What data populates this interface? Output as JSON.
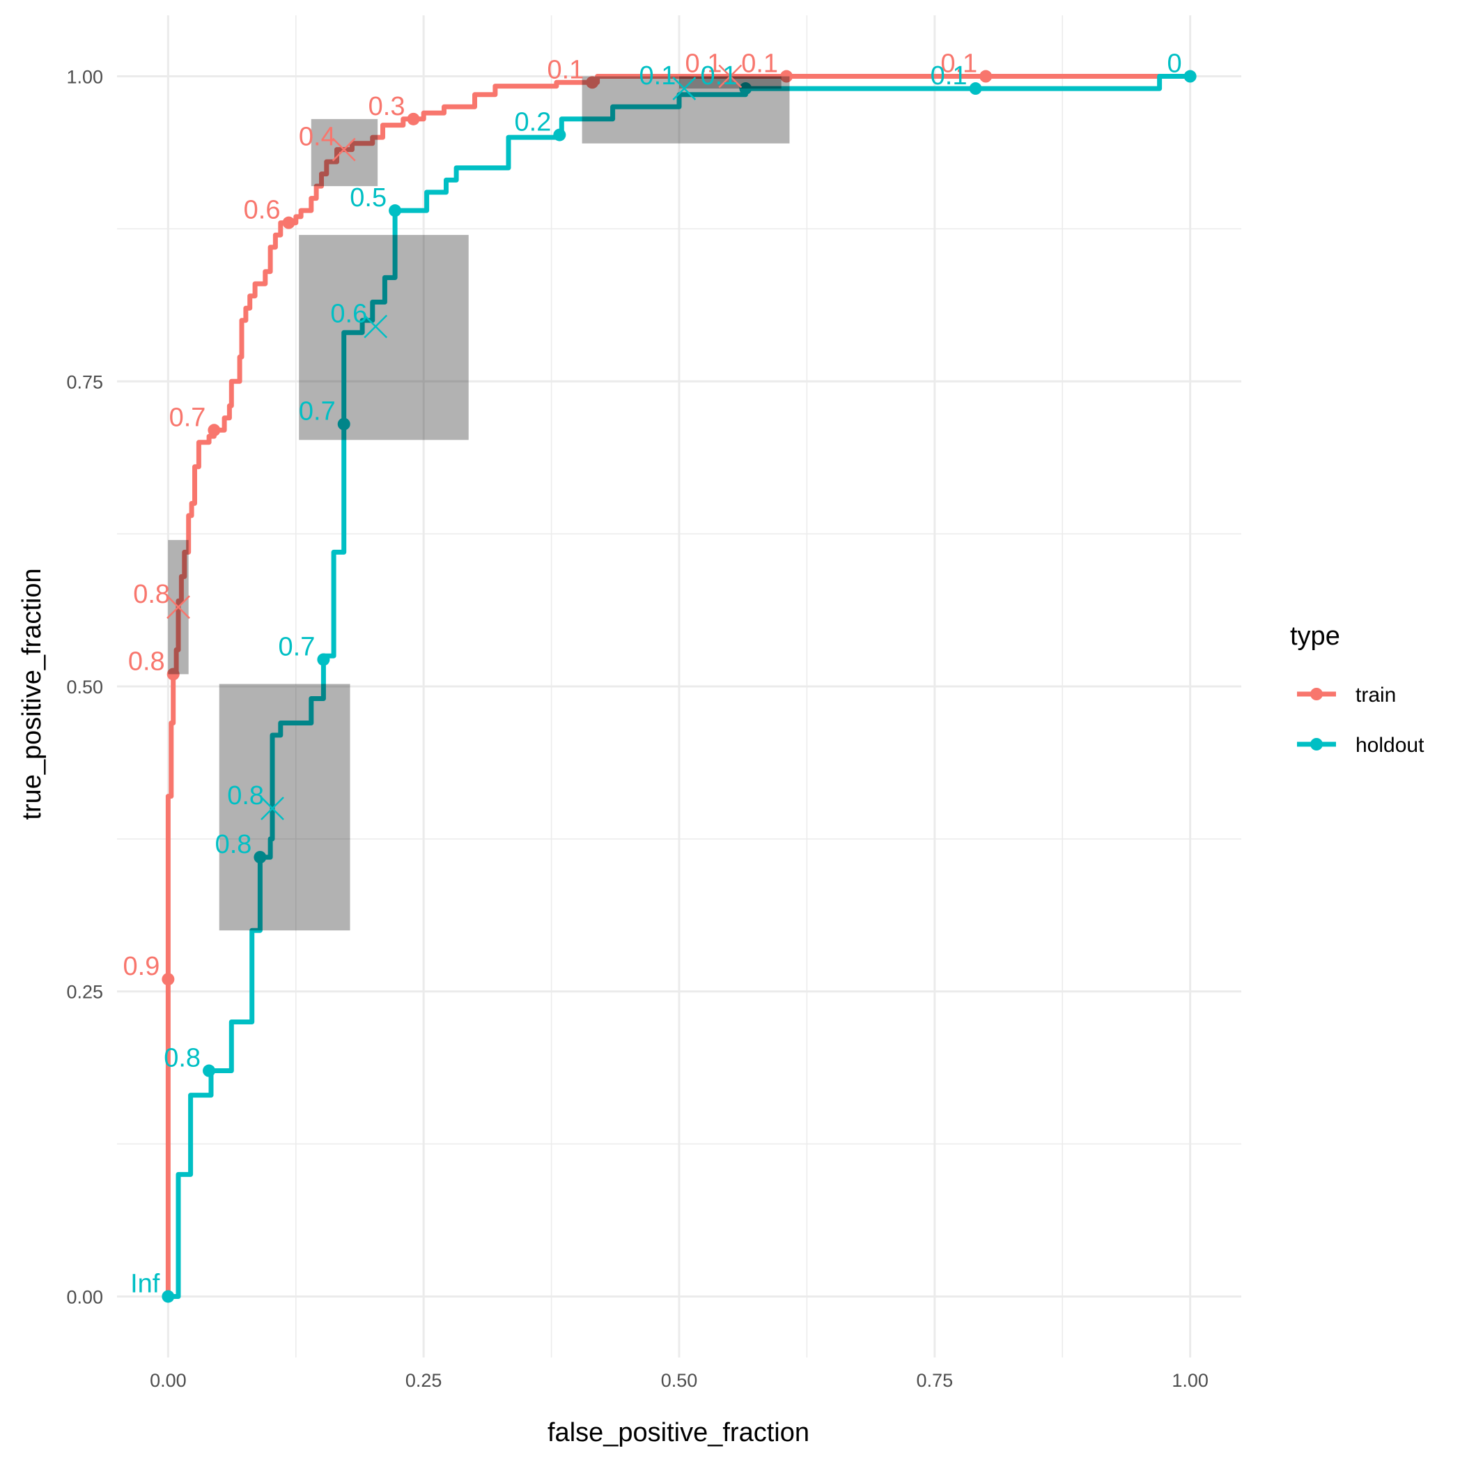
{
  "chart_data": {
    "type": "line",
    "title": "",
    "xlabel": "false_positive_fraction",
    "ylabel": "true_positive_fraction",
    "xlim": [
      -0.05,
      1.05
    ],
    "ylim": [
      -0.05,
      1.05
    ],
    "x_ticks": [
      0,
      0.25,
      0.5,
      0.75,
      1
    ],
    "x_tick_labels": [
      "0.00",
      "0.25",
      "0.50",
      "0.75",
      "1.00"
    ],
    "y_ticks": [
      0,
      0.25,
      0.5,
      0.75,
      1
    ],
    "y_tick_labels": [
      "0.00",
      "0.25",
      "0.50",
      "0.75",
      "1.00"
    ],
    "grid": true,
    "legend": {
      "title": "type",
      "position": "right",
      "entries": [
        {
          "label": "train",
          "color": "#F8766D"
        },
        {
          "label": "holdout",
          "color": "#00BFC4"
        }
      ]
    },
    "series": [
      {
        "name": "train",
        "color": "#F8766D",
        "step": [
          [
            0,
            0
          ],
          [
            0,
            0.26
          ],
          [
            0,
            0.41
          ],
          [
            0.003,
            0.41
          ],
          [
            0.003,
            0.47
          ],
          [
            0.005,
            0.47
          ],
          [
            0.005,
            0.51
          ],
          [
            0.008,
            0.51
          ],
          [
            0.008,
            0.53
          ],
          [
            0.01,
            0.53
          ],
          [
            0.01,
            0.57
          ],
          [
            0.013,
            0.57
          ],
          [
            0.013,
            0.59
          ],
          [
            0.016,
            0.59
          ],
          [
            0.016,
            0.61
          ],
          [
            0.02,
            0.61
          ],
          [
            0.02,
            0.64
          ],
          [
            0.023,
            0.64
          ],
          [
            0.023,
            0.65
          ],
          [
            0.026,
            0.65
          ],
          [
            0.026,
            0.68
          ],
          [
            0.03,
            0.68
          ],
          [
            0.03,
            0.7
          ],
          [
            0.04,
            0.7
          ],
          [
            0.04,
            0.705
          ],
          [
            0.045,
            0.705
          ],
          [
            0.045,
            0.71
          ],
          [
            0.055,
            0.71
          ],
          [
            0.055,
            0.72
          ],
          [
            0.06,
            0.72
          ],
          [
            0.06,
            0.73
          ],
          [
            0.062,
            0.73
          ],
          [
            0.062,
            0.75
          ],
          [
            0.07,
            0.75
          ],
          [
            0.07,
            0.77
          ],
          [
            0.072,
            0.77
          ],
          [
            0.072,
            0.8
          ],
          [
            0.076,
            0.8
          ],
          [
            0.076,
            0.81
          ],
          [
            0.08,
            0.81
          ],
          [
            0.08,
            0.82
          ],
          [
            0.085,
            0.82
          ],
          [
            0.085,
            0.83
          ],
          [
            0.095,
            0.83
          ],
          [
            0.095,
            0.84
          ],
          [
            0.1,
            0.84
          ],
          [
            0.1,
            0.86
          ],
          [
            0.105,
            0.86
          ],
          [
            0.105,
            0.87
          ],
          [
            0.11,
            0.87
          ],
          [
            0.11,
            0.88
          ],
          [
            0.125,
            0.88
          ],
          [
            0.125,
            0.885
          ],
          [
            0.13,
            0.885
          ],
          [
            0.13,
            0.89
          ],
          [
            0.14,
            0.89
          ],
          [
            0.14,
            0.9
          ],
          [
            0.145,
            0.9
          ],
          [
            0.145,
            0.91
          ],
          [
            0.15,
            0.91
          ],
          [
            0.15,
            0.92
          ],
          [
            0.155,
            0.92
          ],
          [
            0.155,
            0.93
          ],
          [
            0.165,
            0.93
          ],
          [
            0.165,
            0.94
          ],
          [
            0.18,
            0.94
          ],
          [
            0.18,
            0.945
          ],
          [
            0.2,
            0.945
          ],
          [
            0.2,
            0.95
          ],
          [
            0.21,
            0.95
          ],
          [
            0.21,
            0.96
          ],
          [
            0.23,
            0.96
          ],
          [
            0.23,
            0.965
          ],
          [
            0.25,
            0.965
          ],
          [
            0.25,
            0.97
          ],
          [
            0.27,
            0.97
          ],
          [
            0.27,
            0.975
          ],
          [
            0.3,
            0.975
          ],
          [
            0.3,
            0.985
          ],
          [
            0.32,
            0.985
          ],
          [
            0.32,
            0.992
          ],
          [
            0.38,
            0.992
          ],
          [
            0.38,
            0.995
          ],
          [
            0.42,
            0.995
          ],
          [
            0.42,
            1.0
          ],
          [
            1.0,
            1.0
          ]
        ],
        "points": [
          {
            "x": 0,
            "y": 0.26,
            "label": "0.9"
          },
          {
            "x": 0.005,
            "y": 0.51,
            "label": "0.8"
          },
          {
            "x": 0.045,
            "y": 0.71,
            "label": "0.7"
          },
          {
            "x": 0.118,
            "y": 0.88,
            "label": "0.6"
          },
          {
            "x": 0.24,
            "y": 0.965,
            "label": "0.3"
          },
          {
            "x": 0.415,
            "y": 0.995,
            "label": "0.1"
          },
          {
            "x": 0.605,
            "y": 1.0,
            "label": "0.1"
          },
          {
            "x": 0.8,
            "y": 1.0,
            "label": "0.1"
          }
        ],
        "crosshair_points": [
          {
            "x": 0.01,
            "y": 0.565,
            "label": "0.8",
            "x_range": [
              0,
              0.02
            ],
            "y_range": [
              0.51,
              0.62
            ]
          },
          {
            "x": 0.172,
            "y": 0.94,
            "label": "0.4",
            "x_range": [
              0.14,
              0.205
            ],
            "y_range": [
              0.91,
              0.965
            ]
          },
          {
            "x": 0.55,
            "y": 1.0,
            "label": "0.1",
            "x_range": [
              0.5,
              0.6
            ],
            "y_range": [
              0.99,
              1.0
            ]
          }
        ]
      },
      {
        "name": "holdout",
        "color": "#00BFC4",
        "step": [
          [
            0,
            0
          ],
          [
            0.01,
            0
          ],
          [
            0.01,
            0.1
          ],
          [
            0.022,
            0.1
          ],
          [
            0.022,
            0.165
          ],
          [
            0.042,
            0.165
          ],
          [
            0.042,
            0.185
          ],
          [
            0.062,
            0.185
          ],
          [
            0.062,
            0.225
          ],
          [
            0.082,
            0.225
          ],
          [
            0.082,
            0.3
          ],
          [
            0.09,
            0.3
          ],
          [
            0.09,
            0.36
          ],
          [
            0.1,
            0.36
          ],
          [
            0.1,
            0.375
          ],
          [
            0.102,
            0.375
          ],
          [
            0.102,
            0.46
          ],
          [
            0.11,
            0.46
          ],
          [
            0.11,
            0.47
          ],
          [
            0.14,
            0.47
          ],
          [
            0.14,
            0.49
          ],
          [
            0.152,
            0.49
          ],
          [
            0.152,
            0.525
          ],
          [
            0.162,
            0.525
          ],
          [
            0.162,
            0.61
          ],
          [
            0.172,
            0.61
          ],
          [
            0.172,
            0.715
          ],
          [
            0.172,
            0.79
          ],
          [
            0.19,
            0.79
          ],
          [
            0.19,
            0.8
          ],
          [
            0.2,
            0.8
          ],
          [
            0.2,
            0.815
          ],
          [
            0.212,
            0.815
          ],
          [
            0.212,
            0.835
          ],
          [
            0.222,
            0.835
          ],
          [
            0.222,
            0.89
          ],
          [
            0.253,
            0.89
          ],
          [
            0.253,
            0.905
          ],
          [
            0.272,
            0.905
          ],
          [
            0.272,
            0.915
          ],
          [
            0.282,
            0.915
          ],
          [
            0.282,
            0.925
          ],
          [
            0.333,
            0.925
          ],
          [
            0.333,
            0.95
          ],
          [
            0.383,
            0.95
          ],
          [
            0.383,
            0.955
          ],
          [
            0.385,
            0.955
          ],
          [
            0.385,
            0.965
          ],
          [
            0.435,
            0.965
          ],
          [
            0.435,
            0.975
          ],
          [
            0.5,
            0.975
          ],
          [
            0.5,
            0.985
          ],
          [
            0.565,
            0.985
          ],
          [
            0.565,
            0.99
          ],
          [
            0.97,
            0.99
          ],
          [
            0.97,
            1.0
          ],
          [
            1.0,
            1.0
          ]
        ],
        "points": [
          {
            "x": 0,
            "y": 0,
            "label": "Inf"
          },
          {
            "x": 0.04,
            "y": 0.185,
            "label": "0.8"
          },
          {
            "x": 0.09,
            "y": 0.36,
            "label": "0.8"
          },
          {
            "x": 0.152,
            "y": 0.522,
            "label": "0.7"
          },
          {
            "x": 0.172,
            "y": 0.715,
            "label": "0.7"
          },
          {
            "x": 0.222,
            "y": 0.89,
            "label": "0.5"
          },
          {
            "x": 0.383,
            "y": 0.952,
            "label": "0.2"
          },
          {
            "x": 0.565,
            "y": 0.99,
            "label": "0.1"
          },
          {
            "x": 0.79,
            "y": 0.99,
            "label": "0.1"
          },
          {
            "x": 1.0,
            "y": 1.0,
            "label": "0"
          }
        ],
        "crosshair_points": [
          {
            "x": 0.102,
            "y": 0.4,
            "label": "0.8",
            "x_range": [
              0.05,
              0.178
            ],
            "y_range": [
              0.3,
              0.502
            ]
          },
          {
            "x": 0.203,
            "y": 0.795,
            "label": "0.6",
            "x_range": [
              0.128,
              0.294
            ],
            "y_range": [
              0.702,
              0.87
            ]
          },
          {
            "x": 0.505,
            "y": 0.99,
            "label": "0.1",
            "x_range": [
              0.405,
              0.608
            ],
            "y_range": [
              0.945,
              1.0
            ]
          }
        ]
      }
    ]
  }
}
